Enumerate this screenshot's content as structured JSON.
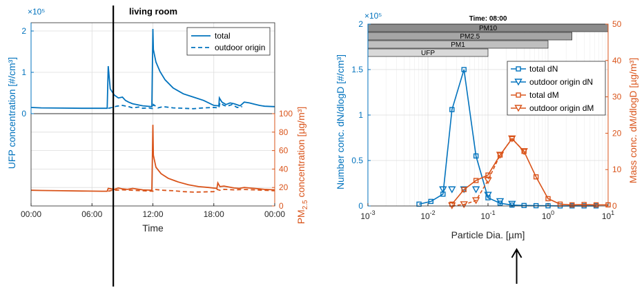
{
  "chart_data": [
    {
      "type": "line",
      "title": "living room",
      "exponent_label": "×10⁵",
      "xlabel": "Time",
      "ylabel_left": "UFP concentration [#/cm³]",
      "ylabel_right": "PM2.5 concentration [µg/m³]",
      "ylabel_right_prefix": "PM",
      "ylabel_right_sub": "2.5",
      "ylabel_right_suffix": " concentration [µg/m³]",
      "x_ticks": [
        "00:00",
        "06:00",
        "12:00",
        "18:00",
        "00:00"
      ],
      "x_tick_hours": [
        0,
        6,
        12,
        18,
        24
      ],
      "xlim": [
        0,
        24
      ],
      "top_y_ticks": [
        "0",
        "1",
        "2"
      ],
      "top_ylim": [
        0,
        2.2
      ],
      "bottom_ylim": [
        0,
        100
      ],
      "bottom_y_ticks": [
        "0",
        "20",
        "40",
        "60",
        "80",
        "100"
      ],
      "legend": [
        "total",
        "outdoor origin"
      ],
      "marker_hour": 8.1,
      "series": [
        {
          "name": "total",
          "panel": "top",
          "x": [
            0,
            1,
            3,
            5,
            7,
            7.5,
            7.6,
            7.8,
            8.2,
            8.6,
            9,
            9.3,
            9.6,
            10,
            11,
            11.9,
            12,
            12.05,
            12.3,
            12.7,
            13.2,
            14,
            15,
            16,
            17,
            18,
            18.5,
            18.55,
            18.8,
            19.2,
            19.6,
            20,
            20.6,
            21,
            21.5,
            22,
            22.5,
            23,
            24
          ],
          "y": [
            0.15,
            0.14,
            0.135,
            0.13,
            0.13,
            0.13,
            1.15,
            0.6,
            0.45,
            0.38,
            0.4,
            0.32,
            0.28,
            0.24,
            0.19,
            0.17,
            2.05,
            1.55,
            1.25,
            1.02,
            0.82,
            0.62,
            0.48,
            0.4,
            0.32,
            0.2,
            0.19,
            0.38,
            0.28,
            0.22,
            0.26,
            0.24,
            0.19,
            0.28,
            0.26,
            0.23,
            0.2,
            0.18,
            0.17
          ]
        },
        {
          "name": "outdoor origin",
          "panel": "top",
          "x": [
            7.6,
            8,
            8.4,
            9,
            9.6,
            10,
            10.6,
            11,
            11.6,
            12,
            12.05,
            12.5,
            13,
            14,
            15,
            16,
            17,
            18,
            18.5,
            18.6,
            19,
            19.3,
            19.8,
            20.3,
            20.8
          ],
          "y": [
            0.13,
            0.15,
            0.18,
            0.2,
            0.17,
            0.14,
            0.16,
            0.13,
            0.14,
            0.12,
            0.22,
            0.14,
            0.17,
            0.14,
            0.13,
            0.12,
            0.14,
            0.15,
            0.14,
            0.26,
            0.2,
            0.18,
            0.22,
            0.15,
            0.17
          ]
        },
        {
          "name": "total",
          "panel": "bottom",
          "x": [
            0,
            1,
            3,
            5,
            7,
            7.5,
            7.6,
            7.9,
            8.2,
            8.6,
            9,
            9.5,
            10,
            11,
            11.9,
            12,
            12.05,
            12.3,
            12.8,
            13.5,
            14.5,
            15.5,
            16.5,
            17.5,
            18.3,
            18.4,
            18.6,
            19,
            19.5,
            20,
            20.5,
            21,
            21.5,
            22,
            22.5,
            23,
            24
          ],
          "y": [
            17,
            16.8,
            16.5,
            16.2,
            16,
            16,
            19,
            18.5,
            18,
            19.5,
            18.5,
            18,
            19,
            17.5,
            17,
            88,
            55,
            42,
            35,
            30,
            26,
            23,
            21,
            20,
            19,
            25,
            21,
            21.5,
            20.5,
            19.5,
            19,
            20,
            19.5,
            19,
            18.5,
            18,
            17.5
          ]
        },
        {
          "name": "outdoor origin",
          "panel": "bottom",
          "x": [
            7.6,
            8,
            9,
            10,
            11,
            12,
            12.1,
            13,
            14,
            15,
            16,
            17,
            18,
            18.3,
            18.6,
            19,
            20,
            21,
            22,
            23,
            24
          ],
          "y": [
            16,
            17,
            17.5,
            17,
            16.5,
            16,
            18,
            17,
            16.5,
            15.5,
            15,
            15.2,
            15.5,
            18,
            17,
            18,
            17.5,
            17.8,
            17.5,
            17,
            16.5
          ]
        }
      ]
    },
    {
      "type": "line",
      "title": "Time: 08:00",
      "exponent_label": "×10⁵",
      "xlabel": "Particle Dia. [µm]",
      "ylabel_left": "Number conc. dN/dlogD [#/cm³]",
      "ylabel_right": "Mass conc. dM/dlogD [µg/m³]",
      "x_scale": "log",
      "xlim": [
        0.001,
        10
      ],
      "x_ticks_exp": [
        -3,
        -2,
        -1,
        0,
        1
      ],
      "y_left_ticks": [
        "0",
        "0.5",
        "1",
        "1.5",
        "2"
      ],
      "ylim_left": [
        0,
        2
      ],
      "y_right_ticks": [
        "0",
        "10",
        "20",
        "30",
        "40",
        "50"
      ],
      "ylim_right": [
        0,
        50
      ],
      "size_bins": [
        {
          "label": "PM10",
          "xmin": 0.001,
          "xmax": 10,
          "color": "#8c8c8c"
        },
        {
          "label": "PM2.5",
          "xmin": 0.001,
          "xmax": 2.5,
          "color": "#a6a6a6"
        },
        {
          "label": "PM1",
          "xmin": 0.001,
          "xmax": 1,
          "color": "#bfbfbf"
        },
        {
          "label": "UFP",
          "xmin": 0.001,
          "xmax": 0.1,
          "color": "#d9d9d9"
        }
      ],
      "legend": [
        "total dN",
        "outdoor origin dN",
        "total dM",
        "outdoor origin dM"
      ],
      "marker_x": 0.3,
      "series": [
        {
          "name": "total dN",
          "axis": "left",
          "color": "#0072BD",
          "marker": "square",
          "x": [
            0.0071,
            0.0112,
            0.0178,
            0.0251,
            0.0398,
            0.0631,
            0.1,
            0.159,
            0.251,
            0.398,
            0.631,
            1,
            1.59,
            2.51,
            3.98,
            6.31
          ],
          "y": [
            0.02,
            0.05,
            0.13,
            1.06,
            1.5,
            0.55,
            0.09,
            0.03,
            0.01,
            0.005,
            0.003,
            0.002,
            0.001,
            0.001,
            0.001,
            0.001
          ]
        },
        {
          "name": "outdoor origin dN",
          "axis": "left",
          "color": "#0072BD",
          "marker": "triangle-down",
          "x": [
            0.0178,
            0.0251,
            0.0398,
            0.0631,
            0.1,
            0.159,
            0.251
          ],
          "y": [
            0.18,
            0.18,
            0.18,
            0.18,
            0.12,
            0.05,
            0.02
          ]
        },
        {
          "name": "total dM",
          "axis": "right",
          "color": "#D95319",
          "marker": "square",
          "x": [
            0.0251,
            0.0398,
            0.0631,
            0.1,
            0.159,
            0.251,
            0.398,
            0.631,
            1,
            1.59,
            2.51,
            3.98,
            6.31,
            10
          ],
          "y": [
            0.5,
            4.5,
            7,
            8.5,
            14,
            18.5,
            15,
            8,
            2,
            0.5,
            0.3,
            0.4,
            0.3,
            0.3
          ]
        },
        {
          "name": "outdoor origin dM",
          "axis": "right",
          "color": "#D95319",
          "marker": "triangle-down",
          "x": [
            0.0251,
            0.0398,
            0.0631,
            0.1,
            0.159,
            0.251,
            0.398
          ],
          "y": [
            0.1,
            0.4,
            1.5,
            7,
            14,
            18.5,
            15
          ]
        }
      ]
    }
  ]
}
